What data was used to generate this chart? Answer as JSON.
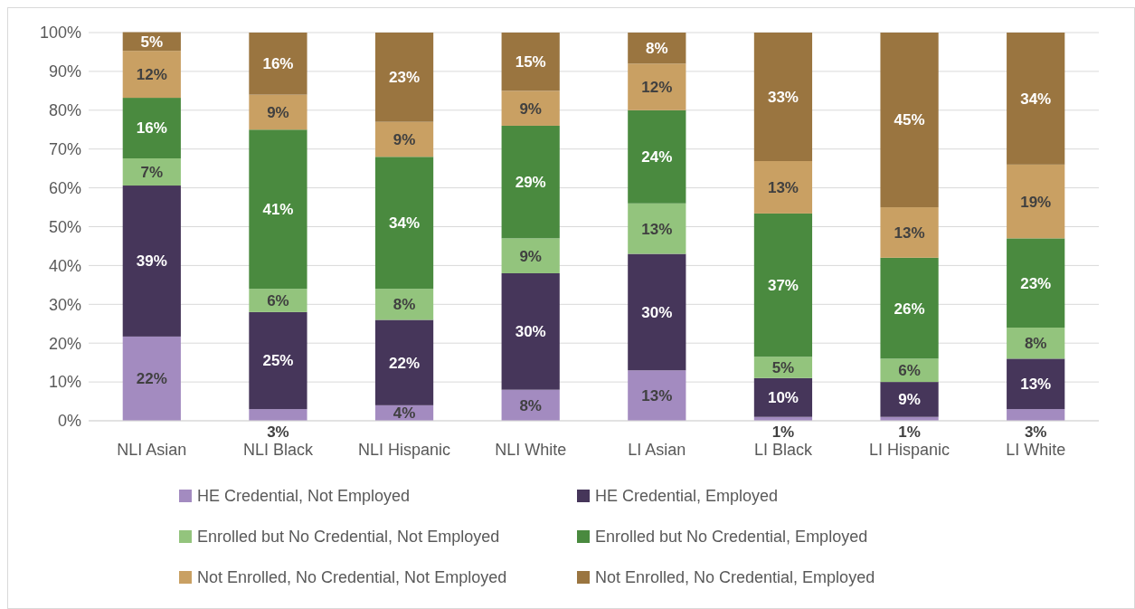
{
  "chart_data": {
    "type": "bar",
    "stacked": true,
    "categories": [
      "NLI Asian",
      "NLI Black",
      "NLI Hispanic",
      "NLI White",
      "LI Asian",
      "LI Black",
      "LI Hispanic",
      "LI White"
    ],
    "ylim": [
      0,
      100
    ],
    "yticks": [
      {
        "value": 0,
        "label": "0%"
      },
      {
        "value": 10,
        "label": "10%"
      },
      {
        "value": 20,
        "label": "20%"
      },
      {
        "value": 30,
        "label": "30%"
      },
      {
        "value": 40,
        "label": "40%"
      },
      {
        "value": 50,
        "label": "50%"
      },
      {
        "value": 60,
        "label": "60%"
      },
      {
        "value": 70,
        "label": "70%"
      },
      {
        "value": 80,
        "label": "80%"
      },
      {
        "value": 90,
        "label": "90%"
      },
      {
        "value": 100,
        "label": "100%"
      }
    ],
    "grid": "y",
    "legend": "bottom",
    "series": [
      {
        "name": "HE Credential, Not Employed",
        "color": "#a38bc0",
        "values": [
          21.7,
          3,
          4,
          8,
          13,
          1,
          1,
          3
        ],
        "value_labels": [
          "22%",
          "3%",
          "4%",
          "8%",
          "13%",
          "1%",
          "1%",
          "3%"
        ]
      },
      {
        "name": "HE Credential, Employed",
        "color": "#46365a",
        "values": [
          38.9,
          25,
          22,
          30,
          30,
          10,
          9,
          13
        ],
        "value_labels": [
          "39%",
          "25%",
          "22%",
          "30%",
          "30%",
          "10%",
          "9%",
          "13%"
        ]
      },
      {
        "name": "Enrolled but No Credential, Not Employed",
        "color": "#93c47d",
        "values": [
          7,
          6,
          8,
          9,
          13,
          5.5,
          6,
          8
        ],
        "value_labels": [
          "7%",
          "6%",
          "8%",
          "9%",
          "13%",
          "5%",
          "6%",
          "8%"
        ]
      },
      {
        "name": "Enrolled but No Credential, Employed",
        "color": "#4a8a3f",
        "values": [
          15.6,
          41,
          34,
          29,
          24,
          36.9,
          26,
          23
        ],
        "value_labels": [
          "16%",
          "41%",
          "34%",
          "29%",
          "24%",
          "37%",
          "26%",
          "23%"
        ]
      },
      {
        "name": "Not Enrolled, No Credential, Not Employed",
        "color": "#c9a063",
        "values": [
          12.1,
          9,
          9,
          9,
          12,
          13.5,
          13,
          19
        ],
        "value_labels": [
          "12%",
          "9%",
          "9%",
          "9%",
          "12%",
          "13%",
          "13%",
          "19%"
        ]
      },
      {
        "name": "Not Enrolled, No Credential, Employed",
        "color": "#9a7540",
        "values": [
          4.8,
          16,
          23,
          15,
          8,
          33.1,
          45,
          34
        ],
        "value_labels": [
          "5%",
          "16%",
          "23%",
          "15%",
          "8%",
          "33%",
          "45%",
          "34%"
        ]
      }
    ]
  }
}
